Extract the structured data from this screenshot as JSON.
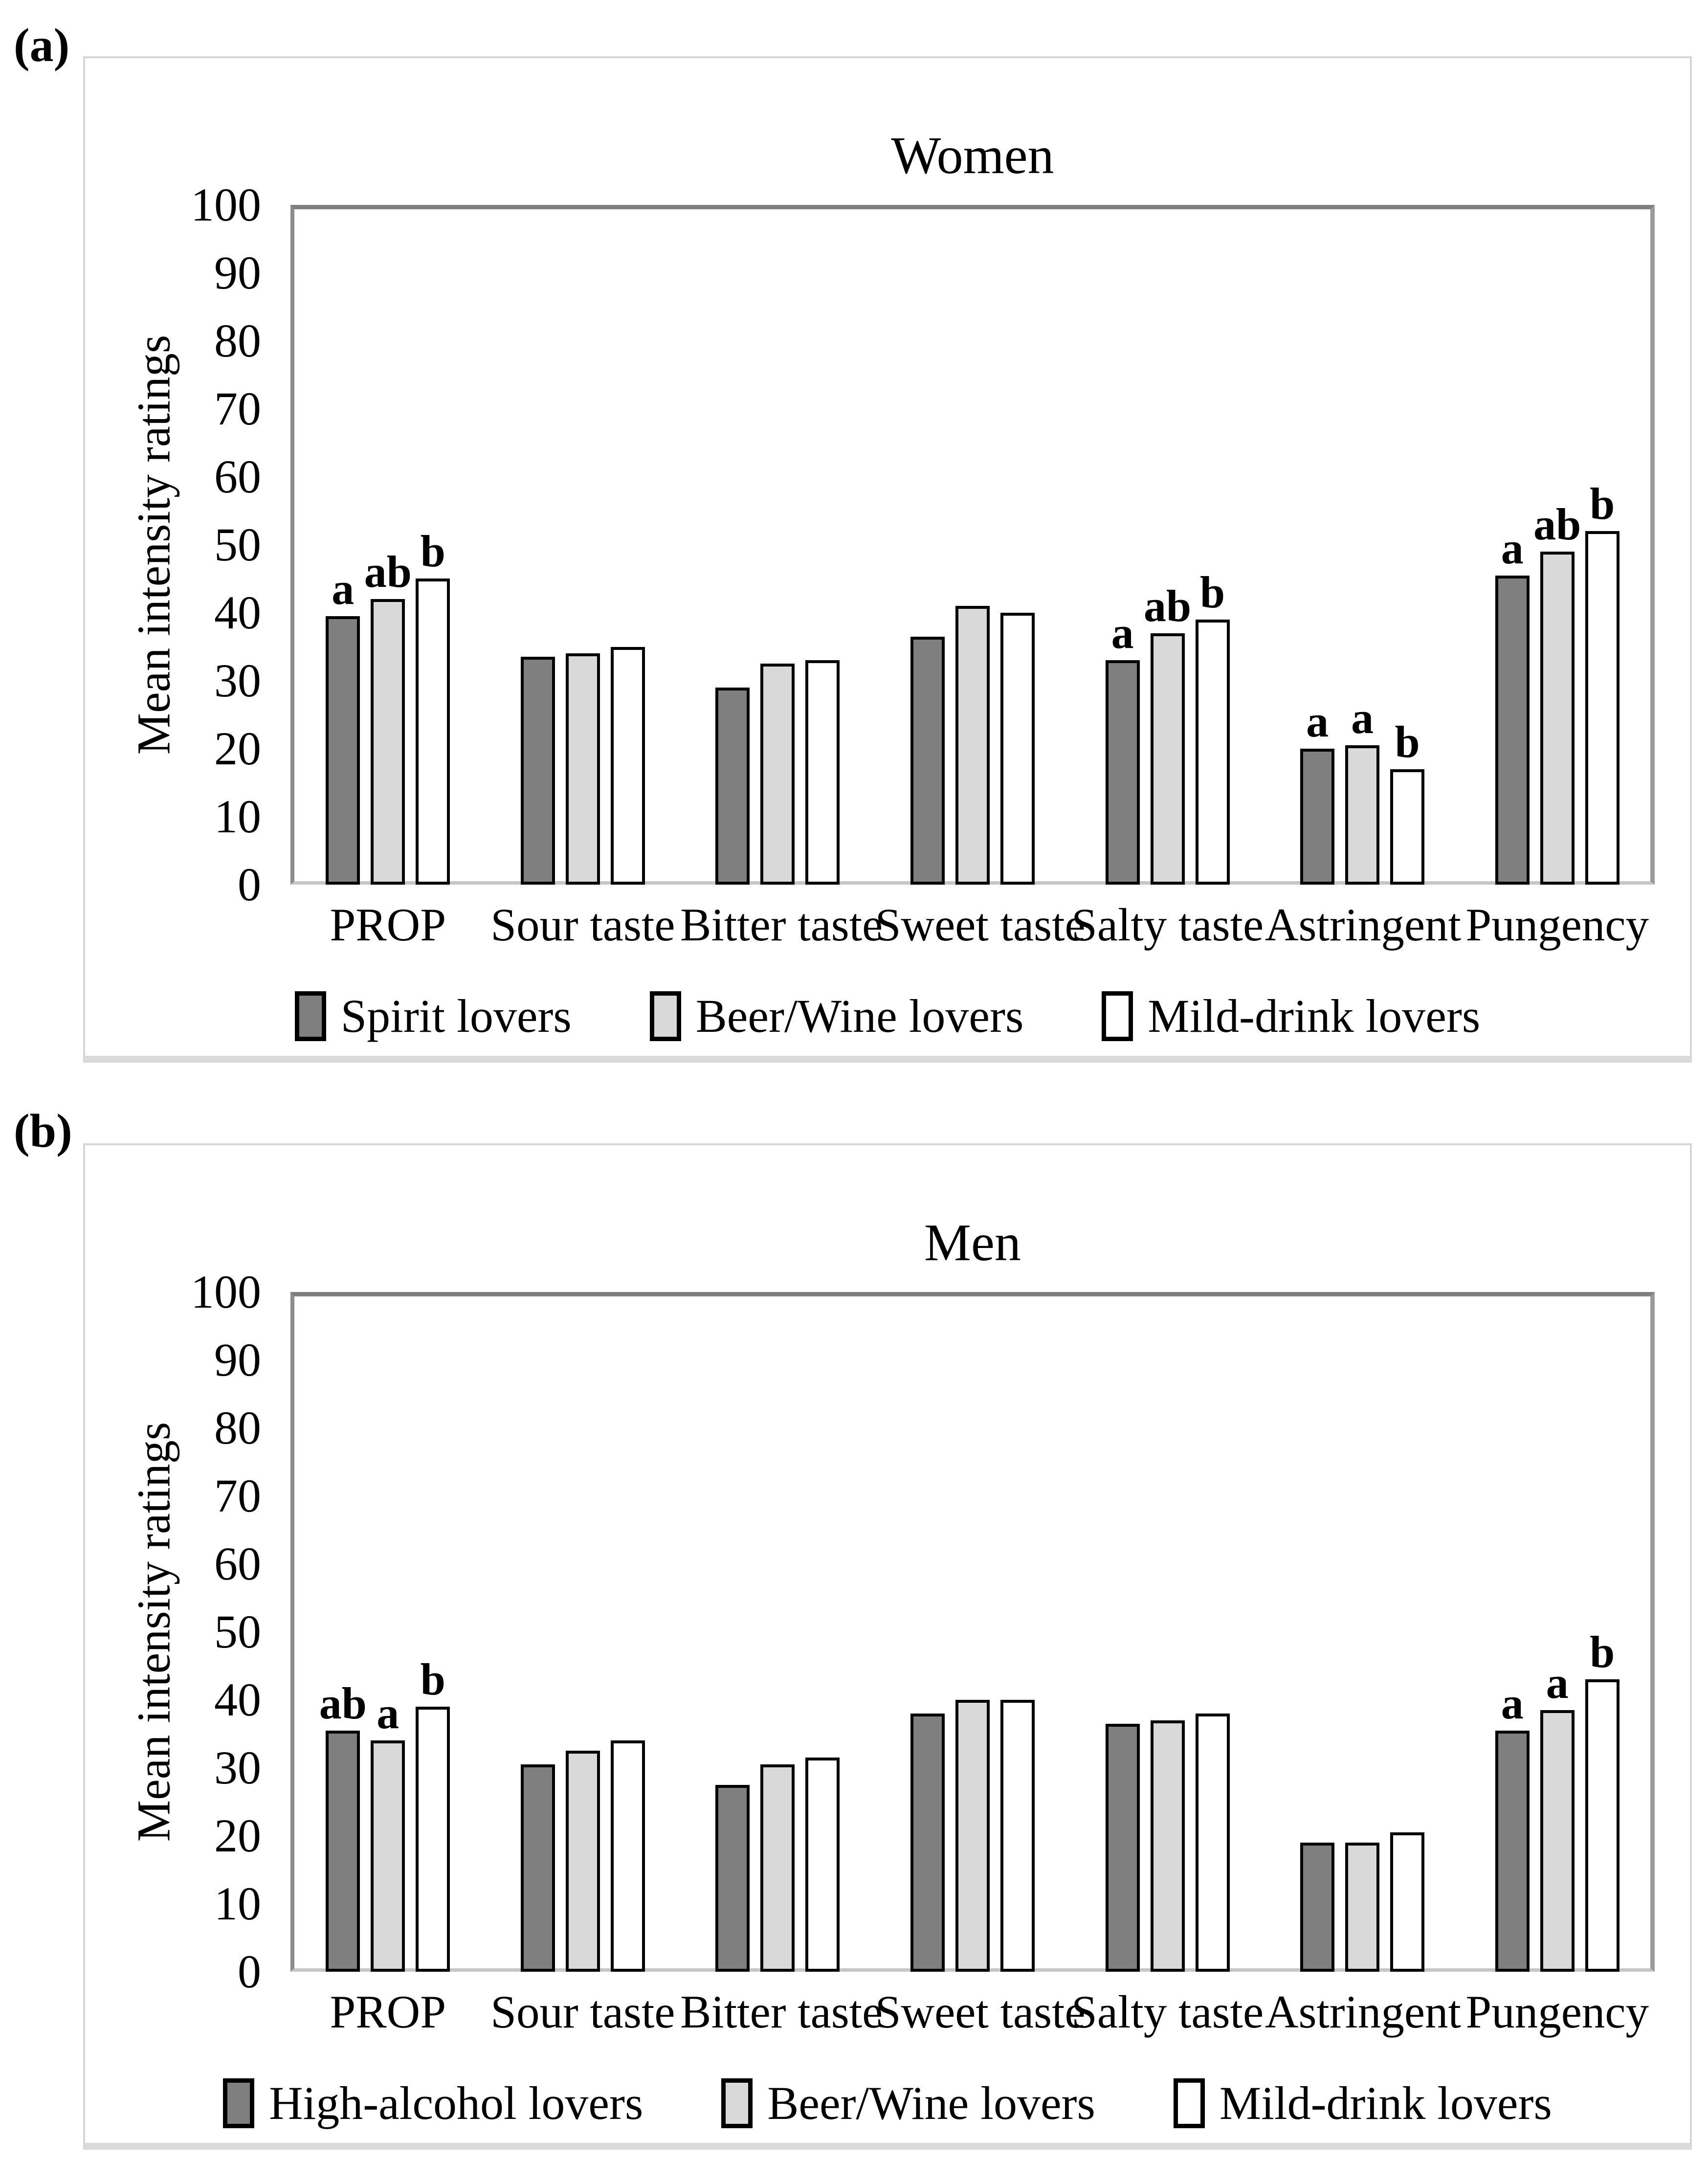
{
  "figure": {
    "panel_a_label": "(a)",
    "panel_b_label": "(b)"
  },
  "colors": {
    "series_dark": "#7f7f7f",
    "series_light": "#d9d9d9",
    "series_white": "#ffffff",
    "bar_outline": "#000000",
    "axis_frame": "#8c8c8c",
    "panel_border": "#d6d6d6"
  },
  "chart_data": [
    {
      "type": "bar",
      "panel_label": "(a)",
      "title": "Women",
      "xlabel": "",
      "ylabel": "Mean intensity ratings",
      "ylim": [
        0,
        100
      ],
      "yticks": [
        0,
        10,
        20,
        30,
        40,
        50,
        60,
        70,
        80,
        90,
        100
      ],
      "grid": "off",
      "legend_position": "bottom",
      "categories": [
        "PROP",
        "Sour taste",
        "Bitter taste",
        "Sweet taste",
        "Salty taste",
        "Astringent",
        "Pungency"
      ],
      "series": [
        {
          "name": "Spirit lovers",
          "color": "#7f7f7f",
          "values": [
            39.5,
            33.5,
            29,
            36.5,
            33,
            20,
            45.5
          ],
          "letters": [
            "a",
            "",
            "",
            "",
            "a",
            "a",
            "a"
          ]
        },
        {
          "name": "Beer/Wine lovers",
          "color": "#d9d9d9",
          "values": [
            42,
            34,
            32.5,
            41,
            37,
            20.5,
            49
          ],
          "letters": [
            "ab",
            "",
            "",
            "",
            "ab",
            "a",
            "ab"
          ]
        },
        {
          "name": "Mild-drink lovers",
          "color": "#ffffff",
          "values": [
            45,
            35,
            33,
            40,
            39,
            17,
            52
          ],
          "letters": [
            "b",
            "",
            "",
            "",
            "b",
            "b",
            "b"
          ]
        }
      ]
    },
    {
      "type": "bar",
      "panel_label": "(b)",
      "title": "Men",
      "xlabel": "",
      "ylabel": "Mean intensity ratings",
      "ylim": [
        0,
        100
      ],
      "yticks": [
        0,
        10,
        20,
        30,
        40,
        50,
        60,
        70,
        80,
        90,
        100
      ],
      "grid": "off",
      "legend_position": "bottom",
      "categories": [
        "PROP",
        "Sour taste",
        "Bitter taste",
        "Sweet taste",
        "Salty taste",
        "Astringent",
        "Pungency"
      ],
      "series": [
        {
          "name": "High-alcohol lovers",
          "color": "#7f7f7f",
          "values": [
            35.5,
            30.5,
            27.5,
            38,
            36.5,
            19,
            35.5
          ],
          "letters": [
            "ab",
            "",
            "",
            "",
            "",
            "",
            "a"
          ]
        },
        {
          "name": "Beer/Wine lovers",
          "color": "#d9d9d9",
          "values": [
            34,
            32.5,
            30.5,
            40,
            37,
            19,
            38.5
          ],
          "letters": [
            "a",
            "",
            "",
            "",
            "",
            "",
            "a"
          ]
        },
        {
          "name": "Mild-drink lovers",
          "color": "#ffffff",
          "values": [
            39,
            34,
            31.5,
            40,
            38,
            20.5,
            43
          ],
          "letters": [
            "b",
            "",
            "",
            "",
            "",
            "",
            "b"
          ]
        }
      ]
    }
  ]
}
